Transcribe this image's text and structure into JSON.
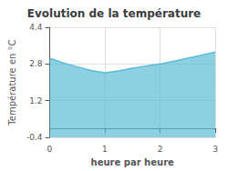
{
  "chart_data": {
    "type": "area",
    "title": "Evolution de la température",
    "xlabel": "heure par heure",
    "ylabel": "Température en °C",
    "x": [
      0,
      0.25,
      0.5,
      0.75,
      1.0,
      1.25,
      1.5,
      1.75,
      2.0,
      2.25,
      2.5,
      2.75,
      3.0
    ],
    "values": [
      3.05,
      2.85,
      2.68,
      2.52,
      2.42,
      2.5,
      2.62,
      2.72,
      2.8,
      2.92,
      3.05,
      3.18,
      3.32
    ],
    "color": "#5bbcd6",
    "xlim": [
      0,
      3
    ],
    "xticks": [
      0,
      1,
      2,
      3
    ],
    "ylim": [
      -0.4,
      4.4
    ],
    "yticks": [
      -0.4,
      1.2,
      2.8,
      4.4
    ],
    "grid": true
  }
}
